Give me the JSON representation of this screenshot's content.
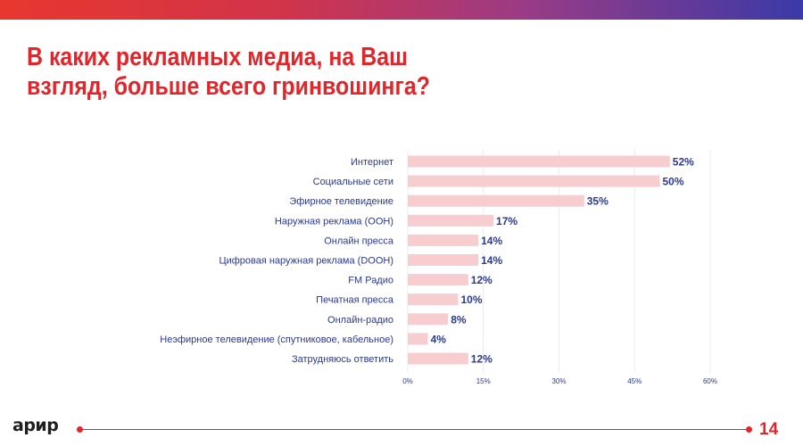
{
  "header": {
    "accent_colors": [
      "#e8372e",
      "#9b3b85",
      "#3a3aa8"
    ]
  },
  "title": {
    "line1": "В каких рекламных медиа, на Ваш",
    "line2": "взгляд, больше всего гринвошинга?",
    "color": "#e0262a"
  },
  "chart_data": {
    "type": "bar",
    "orientation": "horizontal",
    "categories": [
      "Интернет",
      "Социальные сети",
      "Эфирное телевидение",
      "Наружная реклама (OOH)",
      "Онлайн пресса",
      "Цифровая наружная реклама (DOOH)",
      "FM Радио",
      "Печатная пресса",
      "Онлайн-радио",
      "Неэфирное  телевидение (спутниковое, кабельное)",
      "Затрудняюсь ответить"
    ],
    "values": [
      52,
      50,
      35,
      17,
      14,
      14,
      12,
      10,
      8,
      4,
      12
    ],
    "data_labels": [
      "52%",
      "50%",
      "35%",
      "17%",
      "14%",
      "14%",
      "12%",
      "10%",
      "8%",
      "4%",
      "12%"
    ],
    "x_ticks": [
      0,
      15,
      30,
      45,
      60
    ],
    "x_tick_labels": [
      "0%",
      "15%",
      "30%",
      "45%",
      "60%"
    ],
    "xlim": [
      0,
      60
    ],
    "grid": true,
    "bar_color": "#f7cdd0",
    "label_color": "#2b3a8c"
  },
  "footer": {
    "logo": "арир",
    "page_number": "14"
  }
}
